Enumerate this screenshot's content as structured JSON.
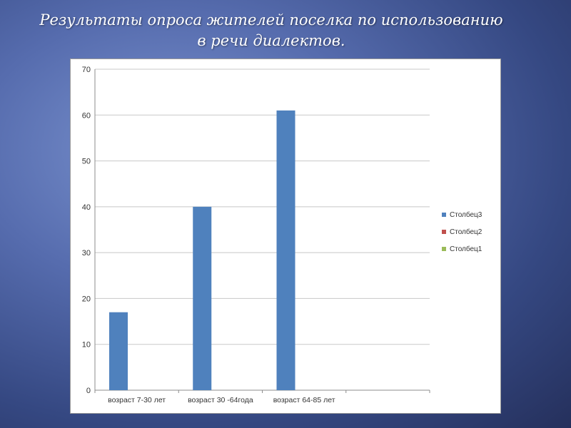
{
  "title": {
    "line1": "Результаты опроса  жителей поселка по  использованию",
    "line2": "в  речи диалектов."
  },
  "chart_data": {
    "type": "bar",
    "categories": [
      "возраст 7-30 лет",
      "возраст 30 -64года",
      "возраст 64-85 лет",
      ""
    ],
    "series": [
      {
        "name": "Столбец3",
        "color": "#4f81bd",
        "values": [
          17,
          40,
          61,
          null
        ]
      },
      {
        "name": "Столбец2",
        "color": "#c0504d",
        "values": [
          null,
          null,
          null,
          null
        ]
      },
      {
        "name": "Столбец1",
        "color": "#9bbb59",
        "values": [
          null,
          null,
          null,
          null
        ]
      }
    ],
    "ylim": [
      0,
      70
    ],
    "yticks": [
      0,
      10,
      20,
      30,
      40,
      50,
      60,
      70
    ],
    "grid": true,
    "legend_position": "right"
  }
}
